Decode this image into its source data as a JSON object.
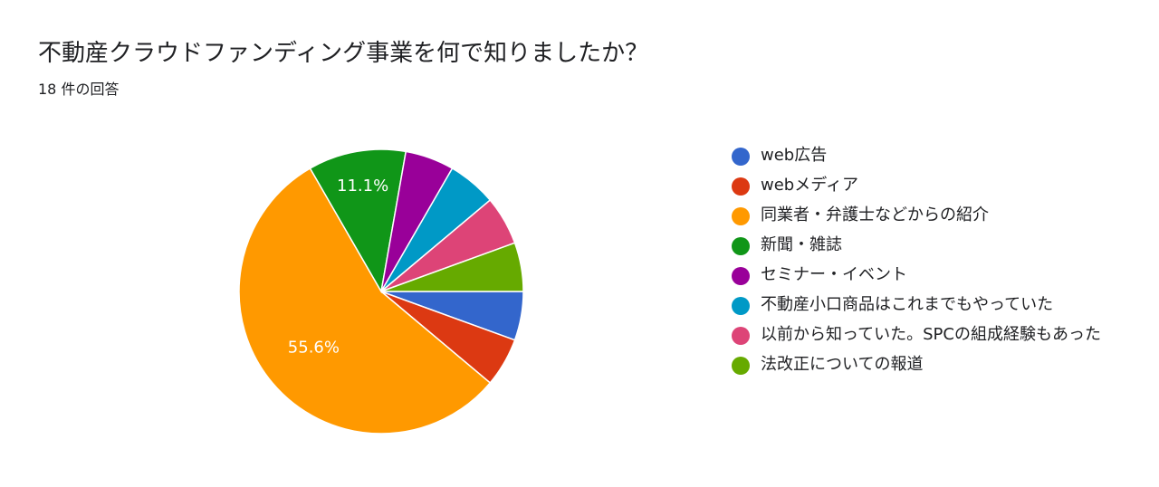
{
  "header": {
    "title": "不動産クラウドファンディング事業を何で知りましたか？",
    "subtitle": "18 件の回答"
  },
  "chart_data": {
    "type": "pie",
    "categories": [
      "web広告",
      "webメディア",
      "同業者・弁護士などからの紹介",
      "新聞・雑誌",
      "セミナー・イベント",
      "不動産小口商品はこれまでもやっていた",
      "以前から知っていた。SPCの組成経験もあった",
      "法改正についての報道"
    ],
    "values": [
      1,
      1,
      10,
      2,
      1,
      1,
      1,
      1
    ],
    "colors": [
      "#3366cc",
      "#dc3912",
      "#ff9900",
      "#109618",
      "#990099",
      "#0099c6",
      "#dd4477",
      "#66aa00"
    ],
    "data_labels": [
      "",
      "",
      "55.6%",
      "11.1%",
      "",
      "",
      "",
      ""
    ],
    "legend_position": "right"
  }
}
